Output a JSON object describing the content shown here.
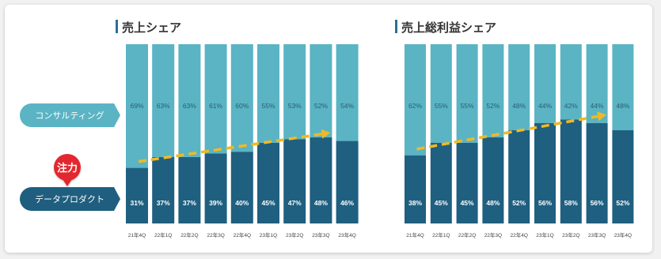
{
  "legend": {
    "consulting_label": "コンサルティング",
    "data_product_label": "データプロダクト",
    "focus_badge": "注力"
  },
  "colors": {
    "consulting": "#5ab4c4",
    "data_product": "#1f5f80",
    "consulting_pill": "#5ab4c4",
    "data_product_pill": "#1f5e7e",
    "focus_badge": "#e4252e",
    "trend_arrow": "#f2b823",
    "title_bar": "#2e6f8e"
  },
  "chart_data": [
    {
      "type": "bar",
      "stacked": true,
      "title": "売上シェア",
      "categories": [
        "21年4Q",
        "22年1Q",
        "22年2Q",
        "22年3Q",
        "22年4Q",
        "23年1Q",
        "23年2Q",
        "23年3Q",
        "23年4Q"
      ],
      "series": [
        {
          "name": "データプロダクト",
          "values": [
            31,
            37,
            37,
            39,
            40,
            45,
            47,
            48,
            46
          ]
        },
        {
          "name": "コンサルティング",
          "values": [
            69,
            63,
            63,
            61,
            60,
            55,
            53,
            52,
            54
          ]
        }
      ],
      "ylim": [
        0,
        100
      ],
      "unit": "%",
      "trend_arrow": true
    },
    {
      "type": "bar",
      "stacked": true,
      "title": "売上総利益シェア",
      "categories": [
        "21年4Q",
        "22年1Q",
        "22年2Q",
        "22年3Q",
        "22年4Q",
        "23年1Q",
        "23年2Q",
        "23年3Q",
        "23年4Q"
      ],
      "series": [
        {
          "name": "データプロダクト",
          "values": [
            38,
            45,
            45,
            48,
            52,
            56,
            58,
            56,
            52
          ]
        },
        {
          "name": "コンサルティング",
          "values": [
            62,
            55,
            55,
            52,
            48,
            44,
            42,
            44,
            48
          ]
        }
      ],
      "ylim": [
        0,
        100
      ],
      "unit": "%",
      "trend_arrow": true
    }
  ]
}
